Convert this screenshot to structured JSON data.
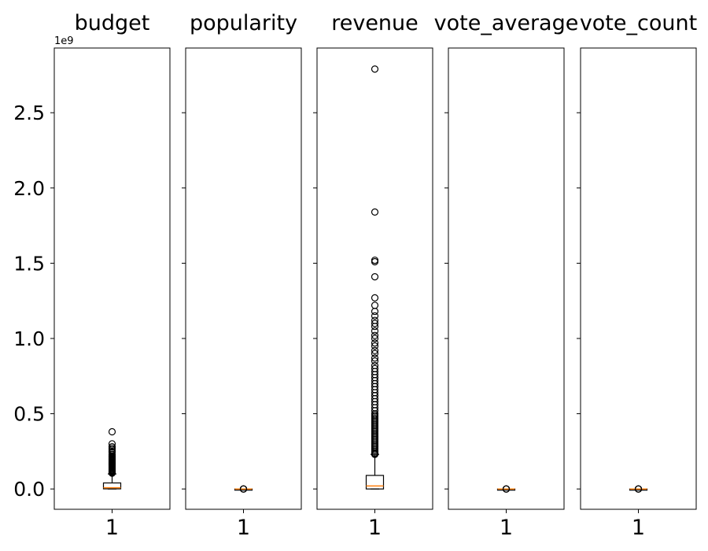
{
  "chart_data": {
    "type": "boxplot",
    "shared_y": true,
    "ylim": [
      -0.135,
      2.93
    ],
    "y_offset_label": "1e9",
    "y_ticks": [
      0.0,
      0.5,
      1.0,
      1.5,
      2.0,
      2.5
    ],
    "y_tick_labels": [
      "0.0",
      "0.5",
      "1.0",
      "1.5",
      "2.0",
      "2.5"
    ],
    "x_tick_label": "1",
    "colors": {
      "box": "#000000",
      "median": "#ff7f0e",
      "frame": "#000000"
    },
    "panels": [
      {
        "title": "budget",
        "box": {
          "whisker_low": 0.0,
          "q1": 0.0008,
          "median": 0.008,
          "q3": 0.04,
          "whisker_high": 0.1
        },
        "outliers": [
          0.105,
          0.11,
          0.115,
          0.12,
          0.125,
          0.13,
          0.135,
          0.14,
          0.145,
          0.15,
          0.155,
          0.16,
          0.165,
          0.17,
          0.175,
          0.18,
          0.185,
          0.19,
          0.195,
          0.2,
          0.205,
          0.21,
          0.215,
          0.22,
          0.23,
          0.245,
          0.25,
          0.26,
          0.27,
          0.28,
          0.3,
          0.38
        ]
      },
      {
        "title": "popularity",
        "box": {
          "whisker_low": 0.0,
          "q1": 0.0,
          "median": 0.0,
          "q3": 0.0,
          "whisker_high": 0.0
        },
        "outliers": [
          0.0,
          0.0,
          0.0
        ]
      },
      {
        "title": "revenue",
        "box": {
          "whisker_low": 0.0,
          "q1": 0.0,
          "median": 0.02,
          "q3": 0.09,
          "whisker_high": 0.23
        },
        "outliers": [
          0.23,
          0.235,
          0.24,
          0.25,
          0.26,
          0.27,
          0.28,
          0.29,
          0.3,
          0.31,
          0.32,
          0.33,
          0.34,
          0.35,
          0.36,
          0.37,
          0.38,
          0.39,
          0.4,
          0.41,
          0.42,
          0.43,
          0.44,
          0.45,
          0.46,
          0.47,
          0.48,
          0.49,
          0.5,
          0.52,
          0.54,
          0.56,
          0.58,
          0.6,
          0.62,
          0.64,
          0.66,
          0.68,
          0.7,
          0.72,
          0.74,
          0.76,
          0.78,
          0.8,
          0.82,
          0.85,
          0.87,
          0.9,
          0.92,
          0.95,
          0.97,
          1.0,
          1.02,
          1.05,
          1.08,
          1.1,
          1.12,
          1.15,
          1.18,
          1.22,
          1.27,
          1.41,
          1.51,
          1.52,
          1.84,
          2.79
        ]
      },
      {
        "title": "vote_average",
        "box": {
          "whisker_low": 0.0,
          "q1": 0.0,
          "median": 0.0,
          "q3": 0.0,
          "whisker_high": 0.0
        },
        "outliers": [
          0.0,
          0.0,
          0.0
        ]
      },
      {
        "title": "vote_count",
        "box": {
          "whisker_low": 0.0,
          "q1": 0.0,
          "median": 0.0,
          "q3": 0.0,
          "whisker_high": 0.0
        },
        "outliers": [
          0.0,
          0.0,
          0.0
        ]
      }
    ]
  }
}
